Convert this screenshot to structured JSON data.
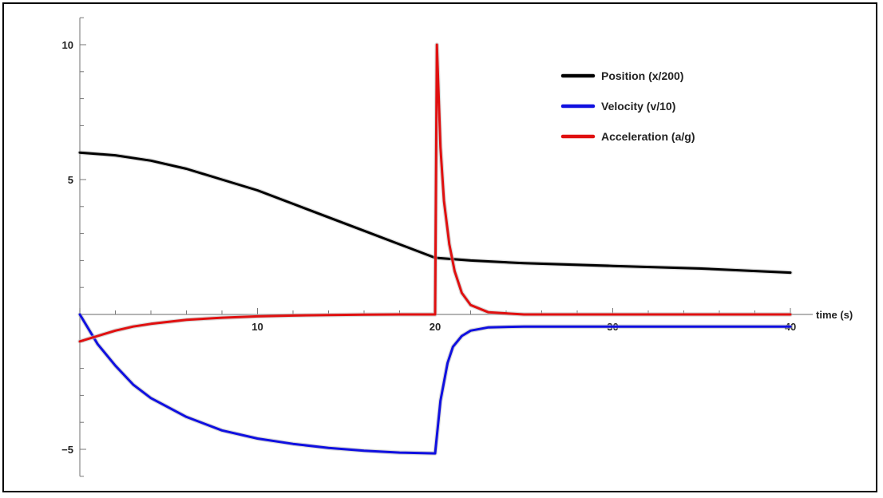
{
  "chart_data": {
    "type": "line",
    "title": "",
    "xlabel": "time (s)",
    "ylabel": "",
    "xlim": [
      0,
      40
    ],
    "ylim": [
      -6,
      11
    ],
    "grid": false,
    "legend_position": "top-right",
    "x_tick_labels": [
      "10",
      "20",
      "30",
      "40"
    ],
    "y_tick_labels": [
      "10",
      "5",
      "-5"
    ],
    "series": [
      {
        "name": "Position (x/200)",
        "color": "#000000",
        "x": [
          0,
          2,
          4,
          6,
          8,
          10,
          12,
          14,
          16,
          18,
          20,
          22,
          25,
          30,
          35,
          40
        ],
        "y": [
          6.0,
          5.9,
          5.7,
          5.4,
          5.0,
          4.6,
          4.1,
          3.6,
          3.1,
          2.6,
          2.1,
          2.0,
          1.9,
          1.8,
          1.7,
          1.55
        ]
      },
      {
        "name": "Velocity (v/10)",
        "color": "#1010e0",
        "x": [
          0,
          1,
          2,
          3,
          4,
          6,
          8,
          10,
          12,
          14,
          16,
          18,
          20,
          20.3,
          20.7,
          21,
          21.5,
          22,
          23,
          25,
          30,
          35,
          40
        ],
        "y": [
          0,
          -1.1,
          -1.9,
          -2.6,
          -3.1,
          -3.8,
          -4.3,
          -4.6,
          -4.8,
          -4.95,
          -5.05,
          -5.12,
          -5.15,
          -3.2,
          -1.8,
          -1.2,
          -0.8,
          -0.6,
          -0.48,
          -0.45,
          -0.45,
          -0.45,
          -0.45
        ]
      },
      {
        "name": "Acceleration (a/g)",
        "color": "#e01010",
        "x": [
          0,
          1,
          2,
          3,
          4,
          6,
          8,
          10,
          12,
          14,
          16,
          18,
          20,
          20.1,
          20.3,
          20.5,
          20.8,
          21.1,
          21.5,
          22,
          23,
          25,
          30,
          35,
          40
        ],
        "y": [
          -1.0,
          -0.8,
          -0.6,
          -0.45,
          -0.35,
          -0.2,
          -0.12,
          -0.07,
          -0.04,
          -0.02,
          -0.01,
          0.0,
          0.0,
          10.0,
          6.2,
          4.2,
          2.6,
          1.6,
          0.8,
          0.35,
          0.08,
          0.0,
          0.0,
          0.0,
          0.0
        ]
      }
    ]
  }
}
